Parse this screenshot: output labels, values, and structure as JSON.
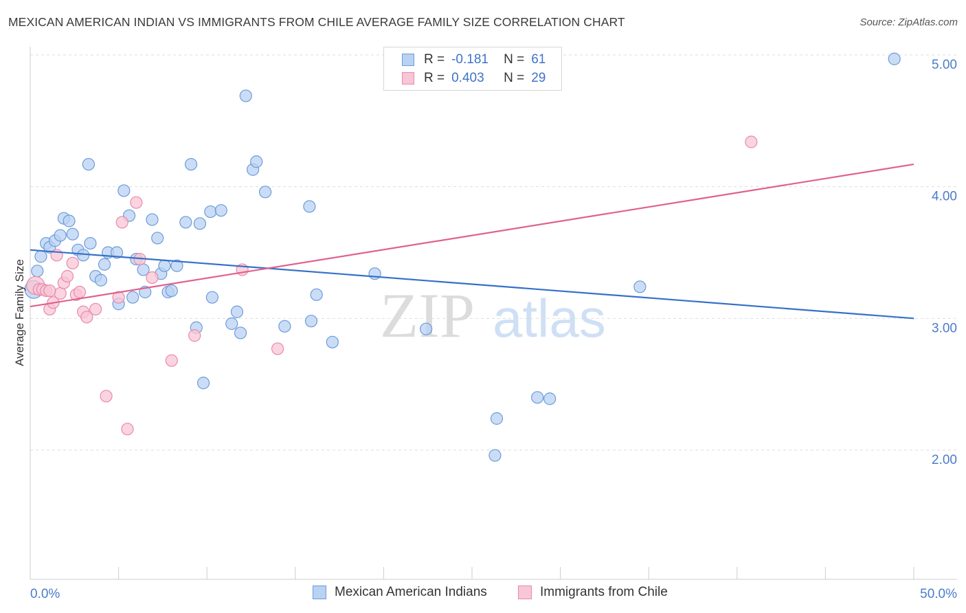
{
  "title": "MEXICAN AMERICAN INDIAN VS IMMIGRANTS FROM CHILE AVERAGE FAMILY SIZE CORRELATION CHART",
  "source": "Source: ZipAtlas.com",
  "watermark": {
    "zip": "ZIP",
    "atlas": "atlas"
  },
  "legend": {
    "rows": [
      {
        "r_label": "R =",
        "r_value": "-0.181",
        "n_label": "N =",
        "n_value": "61"
      },
      {
        "r_label": "R =",
        "r_value": "0.403",
        "n_label": "N =",
        "n_value": "29"
      }
    ]
  },
  "colors": {
    "blue_fill": "#b9d2f3",
    "blue_stroke": "#6b9bd8",
    "blue_line": "#3570c9",
    "pink_fill": "#f8c6d6",
    "pink_stroke": "#e889a9",
    "pink_line": "#e0608f",
    "tick_text": "#4a7cc9",
    "grid": "#dddddd"
  },
  "chart_data": {
    "type": "scatter",
    "title": "MEXICAN AMERICAN INDIAN VS IMMIGRANTS FROM CHILE AVERAGE FAMILY SIZE CORRELATION CHART",
    "xlabel": "",
    "ylabel": "Average Family Size",
    "xlim": [
      0,
      50
    ],
    "ylim": [
      1.0,
      5.15
    ],
    "x_tick_labels": [
      "0.0%",
      "50.0%"
    ],
    "y_ticks": [
      2.0,
      3.0,
      4.0,
      5.0
    ],
    "y_tick_labels": [
      "2.00",
      "3.00",
      "4.00",
      "5.00"
    ],
    "grid": true,
    "legend_position": "bottom",
    "series": [
      {
        "name": "Mexican American Indians",
        "r": -0.181,
        "n": 61,
        "trend": {
          "x0": 0,
          "y0": 3.52,
          "x1": 50,
          "y1": 3.0
        },
        "points": [
          [
            0.2,
            3.22
          ],
          [
            0.4,
            3.36
          ],
          [
            0.6,
            3.47
          ],
          [
            0.9,
            3.57
          ],
          [
            1.1,
            3.54
          ],
          [
            1.4,
            3.59
          ],
          [
            1.7,
            3.63
          ],
          [
            1.9,
            3.76
          ],
          [
            2.2,
            3.74
          ],
          [
            2.4,
            3.64
          ],
          [
            2.7,
            3.52
          ],
          [
            3.0,
            3.48
          ],
          [
            3.3,
            4.17
          ],
          [
            3.4,
            3.57
          ],
          [
            3.7,
            3.32
          ],
          [
            4.0,
            3.29
          ],
          [
            4.2,
            3.41
          ],
          [
            4.4,
            3.5
          ],
          [
            4.9,
            3.5
          ],
          [
            5.0,
            3.11
          ],
          [
            5.3,
            3.97
          ],
          [
            5.6,
            3.78
          ],
          [
            5.8,
            3.16
          ],
          [
            6.0,
            3.45
          ],
          [
            6.4,
            3.37
          ],
          [
            6.5,
            3.2
          ],
          [
            6.9,
            3.75
          ],
          [
            7.2,
            3.61
          ],
          [
            7.4,
            3.34
          ],
          [
            7.6,
            3.4
          ],
          [
            7.8,
            3.2
          ],
          [
            8.0,
            3.21
          ],
          [
            8.3,
            3.4
          ],
          [
            8.8,
            3.73
          ],
          [
            9.1,
            4.17
          ],
          [
            9.4,
            2.93
          ],
          [
            9.6,
            3.72
          ],
          [
            9.8,
            2.51
          ],
          [
            10.2,
            3.81
          ],
          [
            10.3,
            3.16
          ],
          [
            10.8,
            3.82
          ],
          [
            11.4,
            2.96
          ],
          [
            11.7,
            3.05
          ],
          [
            11.9,
            2.89
          ],
          [
            12.2,
            4.69
          ],
          [
            12.6,
            4.13
          ],
          [
            12.8,
            4.19
          ],
          [
            13.3,
            3.96
          ],
          [
            14.4,
            2.94
          ],
          [
            15.8,
            3.85
          ],
          [
            15.9,
            2.98
          ],
          [
            16.2,
            3.18
          ],
          [
            17.1,
            2.82
          ],
          [
            19.5,
            3.34
          ],
          [
            22.4,
            2.92
          ],
          [
            26.3,
            1.96
          ],
          [
            26.4,
            2.24
          ],
          [
            28.7,
            2.4
          ],
          [
            29.4,
            2.39
          ],
          [
            34.5,
            3.24
          ],
          [
            48.9,
            4.97
          ]
        ]
      },
      {
        "name": "Immigrants from Chile",
        "r": 0.403,
        "n": 29,
        "trend": {
          "x0": 0,
          "y0": 3.09,
          "x1": 50,
          "y1": 4.17
        },
        "points": [
          [
            0.3,
            3.25
          ],
          [
            0.5,
            3.22
          ],
          [
            0.7,
            3.22
          ],
          [
            0.9,
            3.21
          ],
          [
            1.1,
            3.07
          ],
          [
            1.3,
            3.12
          ],
          [
            1.5,
            3.48
          ],
          [
            1.7,
            3.19
          ],
          [
            1.9,
            3.27
          ],
          [
            2.1,
            3.32
          ],
          [
            2.4,
            3.42
          ],
          [
            2.6,
            3.18
          ],
          [
            2.8,
            3.2
          ],
          [
            3.0,
            3.05
          ],
          [
            3.2,
            3.01
          ],
          [
            3.7,
            3.07
          ],
          [
            4.3,
            2.41
          ],
          [
            5.0,
            3.16
          ],
          [
            5.2,
            3.73
          ],
          [
            5.5,
            2.16
          ],
          [
            6.0,
            3.88
          ],
          [
            6.2,
            3.45
          ],
          [
            6.9,
            3.31
          ],
          [
            8.0,
            2.68
          ],
          [
            9.3,
            2.87
          ],
          [
            12.0,
            3.37
          ],
          [
            14.0,
            2.77
          ],
          [
            40.8,
            4.34
          ],
          [
            1.1,
            3.21
          ]
        ]
      }
    ]
  }
}
